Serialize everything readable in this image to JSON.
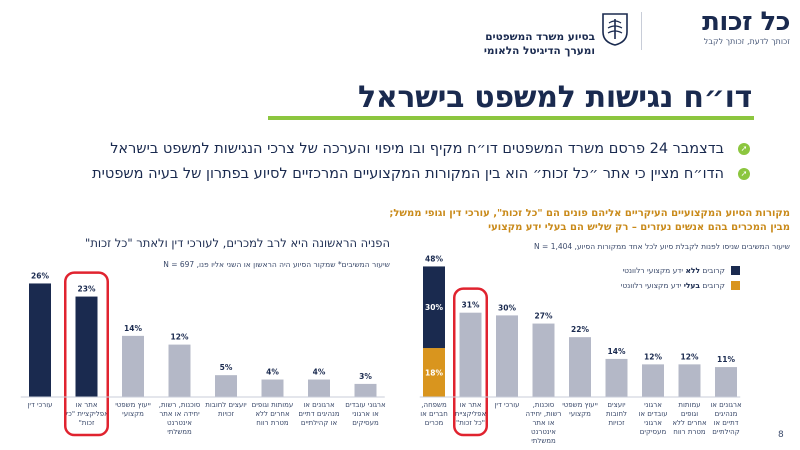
{
  "header": {
    "brand": "כל זכות",
    "brand_tagline": "זכותך לדעת, זכותך לקבל",
    "partner_line1": "בסיוע משרד המשפטים",
    "partner_line2": "ומערך הדיגיטל הלאומי"
  },
  "title": "דו״ח נגישות למשפט בישראל",
  "bullets": [
    "בדצמבר 24 פרסם משרד המשפטים דו״ח מקיף ובו מיפוי והערכה של צרכי הנגישות למשפט בישראל",
    "הדו״ח מציין כי אתר ״כל זכות״ הוא בין המקורות המקצועיים המרכזיים לסיוע בפתרון של בעיה משפטית"
  ],
  "colors": {
    "navy": "#1a2a4f",
    "gray": "#b4b8c7",
    "gold": "#d9951e",
    "accent_green": "#8cc63f",
    "highlight_red": "#e0232f"
  },
  "legend": {
    "navy_prefix": "קרובים ",
    "navy_bold": "ללא",
    "navy_suffix": " ידע מקצועי רלוונטי",
    "gold_prefix": "קרובים ",
    "gold_bold": "בעלי",
    "gold_suffix": " ידע מקצועי רלוונטי"
  },
  "page_number": "8",
  "chart_data": [
    {
      "type": "bar",
      "title": "הפניה הראשונה היא לרב למכרים, לעורכי דין ולאתר \"כל זכות\"",
      "subtitle": "שיעור המשיבים* שמקור הסיוע היה הראשון או השני אליו פנו, N = 697",
      "categories": [
        "עורכי דין",
        "אתר או אפליקציית \"כל זכות\"",
        "ייעוץ משפטי מקצועי",
        "סוכנות, רשות, יחידה או אתר אינטרנט ממשלתי",
        "יועצים לחובות זכויות",
        "עמותות וגופים אחרים ללא מטרת רווח",
        "ארגונים או מנהיגים דתיים או קהילתיים",
        "ארגוני עובדים או ארגוני מעסיקים"
      ],
      "values": [
        26,
        23,
        14,
        12,
        5,
        4,
        4,
        3
      ],
      "value_labels": [
        "26%",
        "23%",
        "14%",
        "12%",
        "5%",
        "4%",
        "4%",
        "3%"
      ],
      "bar_colors": [
        "navy",
        "navy",
        "gray",
        "gray",
        "gray",
        "gray",
        "gray",
        "gray"
      ],
      "highlighted_index": 1,
      "ylim": [
        0,
        30
      ]
    },
    {
      "type": "bar",
      "title_line1": "מקורות הסיוע המקצועיים העיקריים אליהם פונים הם \"כל זכות\", עורכי דין וגופי ממשל;",
      "title_line2": "מבין המכרים בהם אנשים נעזרים – רק שליש הם בעלי ידע מקצועי",
      "subtitle": "שיעור המשיבים שניסו לפנות לקבלת סיוע לכל אחד ממקורות הסיוע, N = 1,404",
      "categories": [
        "משפחה, חברים או מכרים",
        "אתר או אפליקציית \"כל זכות\"",
        "עורכי דין",
        "סוכנות, רשות, יחידה או אתר אינטרנט ממשלתי",
        "ייעוץ משפטי מקצועי",
        "יועצים לחובות זכויות",
        "ארגוני עובדים או ארגוני מעסיקים",
        "עמותות וגופים אחרים ללא מטרת רווח",
        "ארגונים או מנהיגים דתיים או קהילתיים"
      ],
      "values": [
        48,
        31,
        30,
        27,
        22,
        14,
        12,
        12,
        11
      ],
      "value_labels": [
        "48%",
        "31%",
        "30%",
        "27%",
        "22%",
        "14%",
        "12%",
        "12%",
        "11%"
      ],
      "stack_first_bar": {
        "series": [
          {
            "name": "קרובים ללא ידע מקצועי רלוונטי",
            "value": 30,
            "label": "30%",
            "color": "navy"
          },
          {
            "name": "קרובים בעלי ידע מקצועי רלוונטי",
            "value": 18,
            "label": "18%",
            "color": "gold"
          }
        ]
      },
      "bar_colors": [
        "stack",
        "gray",
        "gray",
        "gray",
        "gray",
        "gray",
        "gray",
        "gray",
        "gray"
      ],
      "highlighted_index": 1,
      "ylim": [
        0,
        50
      ]
    }
  ]
}
